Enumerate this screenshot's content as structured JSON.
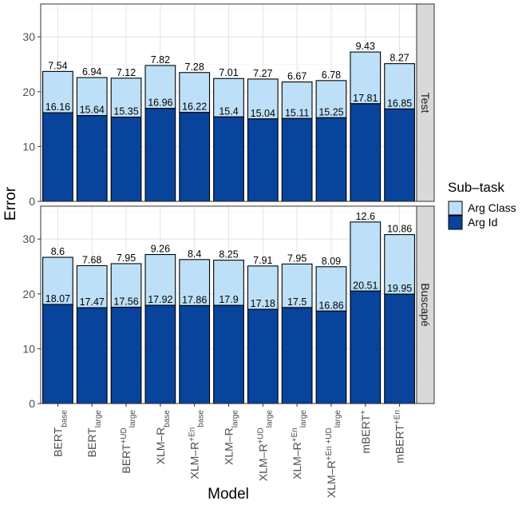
{
  "chart_data": {
    "type": "bar",
    "stacked": true,
    "title": "",
    "xlabel": "Model",
    "ylabel": "Error",
    "ylim": [
      0,
      36
    ],
    "yticks": [
      0,
      10,
      20,
      30
    ],
    "categories": [
      {
        "base": "BERT",
        "sup": "",
        "sub": "base"
      },
      {
        "base": "BERT",
        "sup": "",
        "sub": "large"
      },
      {
        "base": "BERT",
        "sup": "+UD",
        "sub": "large"
      },
      {
        "base": "XLM–R",
        "sup": "",
        "sub": "base"
      },
      {
        "base": "XLM–R",
        "sup": "+En",
        "sub": "base"
      },
      {
        "base": "XLM–R",
        "sup": "",
        "sub": "large"
      },
      {
        "base": "XLM–R",
        "sup": "+UD",
        "sub": "large"
      },
      {
        "base": "XLM–R",
        "sup": "+En",
        "sub": "large"
      },
      {
        "base": "XLM–R",
        "sup": "+En +UD",
        "sub": "large"
      },
      {
        "base": "mBERT",
        "sup": "+",
        "sub": ""
      },
      {
        "base": "mBERT",
        "sup": "+En",
        "sub": ""
      }
    ],
    "legend": {
      "title": "Sub–task",
      "position": "right",
      "items": [
        {
          "name": "Arg Class",
          "color": "#bde0f8"
        },
        {
          "name": "Arg Id",
          "color": "#08439c"
        }
      ]
    },
    "facets": [
      {
        "label": "Test",
        "series": [
          {
            "name": "Arg Id",
            "values": [
              16.16,
              15.64,
              15.35,
              16.96,
              16.22,
              15.4,
              15.04,
              15.11,
              15.25,
              17.81,
              16.85
            ],
            "labels": [
              "16.16",
              "15.64",
              "15.35",
              "16.96",
              "16.22",
              "15.4",
              "15.04",
              "15.11",
              "15.25",
              "17.81",
              "16.85"
            ]
          },
          {
            "name": "Arg Class",
            "values": [
              7.54,
              6.94,
              7.12,
              7.82,
              7.28,
              7.01,
              7.27,
              6.67,
              6.78,
              9.43,
              8.27
            ],
            "labels": [
              "7.54",
              "6.94",
              "7.12",
              "7.82",
              "7.28",
              "7.01",
              "7.27",
              "6.67",
              "6.78",
              "9.43",
              "8.27"
            ]
          }
        ]
      },
      {
        "label": "Buscapé",
        "series": [
          {
            "name": "Arg Id",
            "values": [
              18.07,
              17.47,
              17.56,
              17.92,
              17.86,
              17.9,
              17.18,
              17.5,
              16.86,
              20.51,
              19.95
            ],
            "labels": [
              "18.07",
              "17.47",
              "17.56",
              "17.92",
              "17.86",
              "17.9",
              "17.18",
              "17.5",
              "16.86",
              "20.51",
              "19.95"
            ]
          },
          {
            "name": "Arg Class",
            "values": [
              8.6,
              7.68,
              7.95,
              9.26,
              8.4,
              8.25,
              7.91,
              7.95,
              8.09,
              12.6,
              10.86
            ],
            "labels": [
              "8.6",
              "7.68",
              "7.95",
              "9.26",
              "8.4",
              "8.25",
              "7.91",
              "7.95",
              "8.09",
              "12.6",
              "10.86"
            ]
          }
        ]
      }
    ]
  }
}
